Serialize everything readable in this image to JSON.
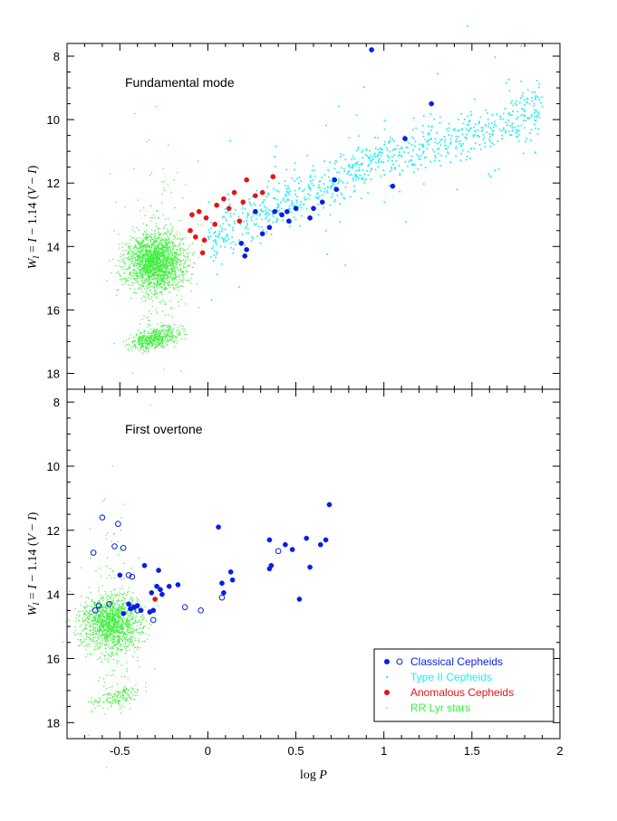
{
  "colors": {
    "classical": "#0a1ee6",
    "type2": "#19f0f0",
    "anomalous": "#e61414",
    "rrlyr": "#3cf03c"
  },
  "chart_data": [
    {
      "type": "scatter",
      "panel_label": "Fundamental mode",
      "xlabel": "",
      "ylabel": "W_I = I − 1.14 (V − I)",
      "xlim": [
        -0.8,
        2.0
      ],
      "ylim": [
        18.5,
        7.6
      ],
      "y_inverted": true,
      "xticks": [],
      "yticks": [
        "8",
        "10",
        "12",
        "14",
        "16",
        "18"
      ],
      "series": [
        {
          "name": "RR Lyr stars",
          "key": "rrlyr",
          "marker": "dot",
          "clumps": [
            {
              "center": [
                -0.3,
                14.5
              ],
              "n": 2200
            },
            {
              "center": [
                -0.3,
                16.9
              ],
              "n": 500
            }
          ]
        },
        {
          "name": "Type II Cepheids",
          "key": "type2",
          "marker": "small-dot",
          "trend": [
            [
              0.0,
              13.8
            ],
            [
              1.0,
              11.2
            ],
            [
              1.5,
              10.5
            ],
            [
              1.9,
              9.5
            ]
          ],
          "n": 900
        },
        {
          "name": "Anomalous Cepheids",
          "key": "anomalous",
          "marker": "filled-circle",
          "points": [
            [
              -0.05,
              12.9
            ],
            [
              -0.1,
              13.5
            ],
            [
              -0.07,
              13.7
            ],
            [
              -0.02,
              13.8
            ],
            [
              -0.01,
              13.1
            ],
            [
              0.05,
              12.7
            ],
            [
              0.09,
              12.5
            ],
            [
              0.12,
              12.8
            ],
            [
              0.15,
              12.3
            ],
            [
              0.2,
              12.6
            ],
            [
              0.22,
              11.9
            ],
            [
              0.27,
              12.4
            ],
            [
              0.31,
              12.3
            ],
            [
              0.37,
              11.8
            ],
            [
              0.04,
              13.3
            ],
            [
              -0.09,
              13.0
            ],
            [
              0.18,
              13.2
            ],
            [
              -0.03,
              14.2
            ]
          ]
        },
        {
          "name": "Classical Cepheids",
          "key": "classical",
          "marker": "filled-circle",
          "points": [
            [
              0.93,
              7.8
            ],
            [
              1.27,
              9.5
            ],
            [
              1.12,
              10.6
            ],
            [
              0.72,
              11.9
            ],
            [
              0.73,
              12.2
            ],
            [
              0.6,
              12.8
            ],
            [
              0.58,
              13.1
            ],
            [
              0.65,
              12.6
            ],
            [
              0.5,
              12.8
            ],
            [
              0.45,
              12.9
            ],
            [
              0.42,
              13.0
            ],
            [
              0.35,
              13.4
            ],
            [
              0.31,
              13.6
            ],
            [
              0.19,
              13.9
            ],
            [
              0.21,
              14.3
            ],
            [
              0.22,
              14.1
            ],
            [
              1.05,
              12.1
            ],
            [
              0.46,
              13.2
            ],
            [
              0.38,
              12.9
            ],
            [
              0.27,
              12.9
            ]
          ]
        }
      ]
    },
    {
      "type": "scatter",
      "panel_label": "First overtone",
      "xlabel": "log P",
      "ylabel": "W_I = I − 1.14 (V − I)",
      "xlim": [
        -0.8,
        2.0
      ],
      "ylim": [
        18.5,
        7.6
      ],
      "y_inverted": true,
      "xticks": [
        "-0.5",
        "0",
        "0.5",
        "1",
        "1.5",
        "2"
      ],
      "yticks": [
        "8",
        "10",
        "12",
        "14",
        "16",
        "18"
      ],
      "series": [
        {
          "name": "RR Lyr stars",
          "key": "rrlyr",
          "marker": "dot",
          "clumps": [
            {
              "center": [
                -0.55,
                14.9
              ],
              "n": 1600
            },
            {
              "center": [
                -0.52,
                17.2
              ],
              "n": 160
            }
          ]
        },
        {
          "name": "Anomalous Cepheids",
          "key": "anomalous",
          "marker": "filled-circle",
          "points": [
            [
              -0.3,
              14.15
            ]
          ]
        },
        {
          "name": "Classical Cepheids",
          "key": "classical",
          "marker": "filled-circle",
          "points": [
            [
              0.69,
              11.2
            ],
            [
              0.06,
              11.9
            ],
            [
              0.56,
              12.25
            ],
            [
              0.35,
              12.3
            ],
            [
              0.44,
              12.45
            ],
            [
              0.48,
              12.6
            ],
            [
              0.67,
              12.3
            ],
            [
              0.64,
              12.45
            ],
            [
              0.58,
              13.15
            ],
            [
              0.36,
              13.1
            ],
            [
              0.35,
              13.2
            ],
            [
              0.13,
              13.3
            ],
            [
              0.14,
              13.55
            ],
            [
              -0.28,
              13.25
            ],
            [
              0.08,
              13.65
            ],
            [
              0.09,
              13.95
            ],
            [
              -0.36,
              13.1
            ],
            [
              -0.22,
              13.75
            ],
            [
              -0.29,
              13.75
            ],
            [
              -0.17,
              13.7
            ],
            [
              -0.32,
              13.95
            ],
            [
              -0.33,
              14.55
            ],
            [
              -0.27,
              13.85
            ],
            [
              -0.26,
              14.0
            ],
            [
              -0.5,
              13.4
            ],
            [
              -0.45,
              14.3
            ],
            [
              -0.42,
              14.4
            ],
            [
              -0.4,
              14.35
            ],
            [
              -0.38,
              14.5
            ],
            [
              -0.31,
              14.5
            ],
            [
              -0.48,
              14.6
            ],
            [
              0.52,
              14.15
            ],
            [
              -0.44,
              14.45
            ]
          ]
        },
        {
          "name": "Classical Cepheids (open)",
          "key": "classical",
          "marker": "open-circle",
          "points": [
            [
              -0.6,
              11.6
            ],
            [
              -0.51,
              11.8
            ],
            [
              -0.65,
              12.7
            ],
            [
              -0.53,
              12.5
            ],
            [
              -0.48,
              12.55
            ],
            [
              -0.45,
              13.4
            ],
            [
              -0.43,
              13.45
            ],
            [
              -0.56,
              14.3
            ],
            [
              -0.62,
              14.35
            ],
            [
              -0.64,
              14.5
            ],
            [
              -0.43,
              14.4
            ],
            [
              -0.4,
              14.5
            ],
            [
              -0.31,
              14.8
            ],
            [
              -0.13,
              14.4
            ],
            [
              -0.04,
              14.5
            ],
            [
              0.08,
              14.1
            ],
            [
              0.4,
              12.65
            ]
          ]
        }
      ]
    }
  ],
  "legend": {
    "position": "bottom-right",
    "items": [
      {
        "label": "Classical Cepheids",
        "key": "classical",
        "marker": "filled+open"
      },
      {
        "label": "Type II Cepheids",
        "key": "type2",
        "marker": "small-dot"
      },
      {
        "label": "Anomalous Cepheids",
        "key": "anomalous",
        "marker": "filled-circle"
      },
      {
        "label": "RR Lyr stars",
        "key": "rrlyr",
        "marker": "dot"
      }
    ]
  }
}
